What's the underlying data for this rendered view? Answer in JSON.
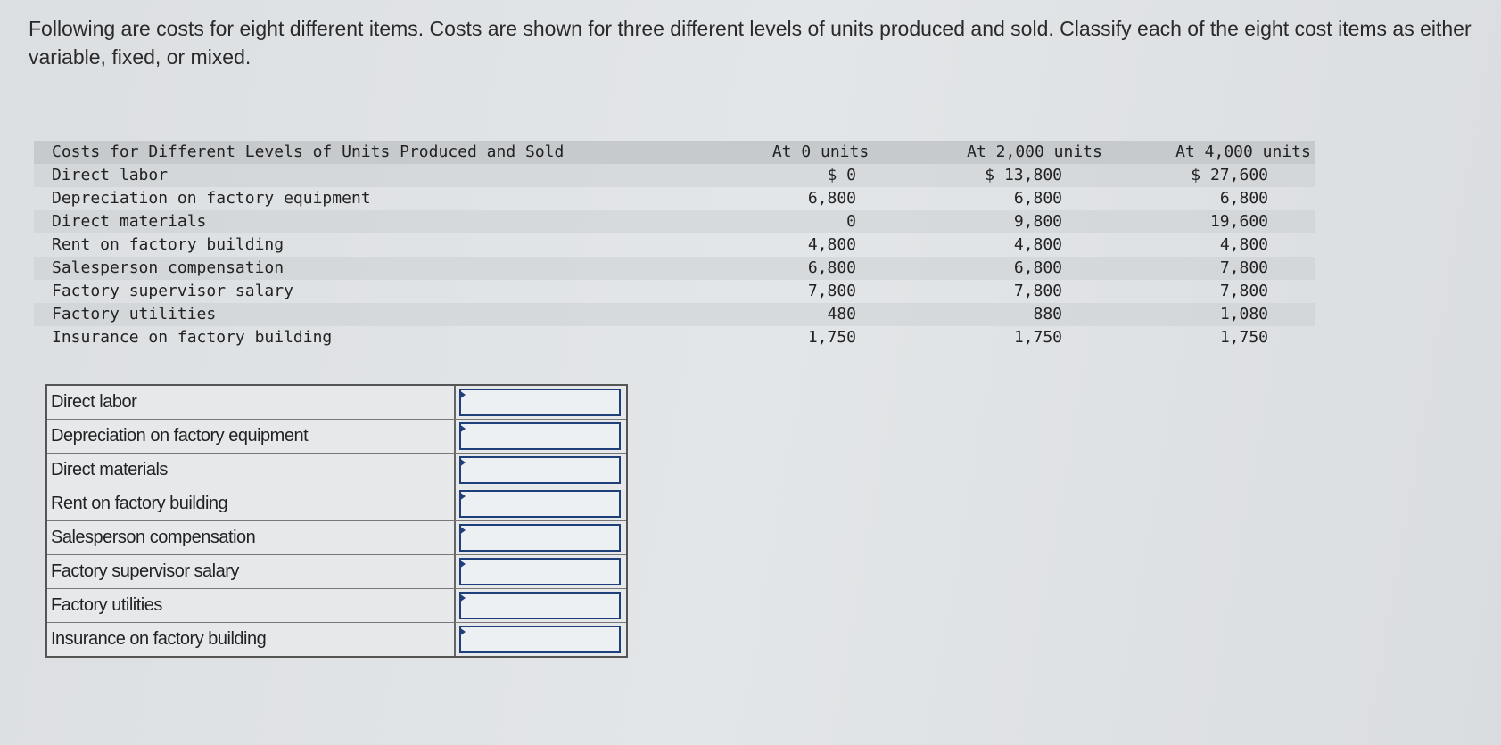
{
  "prompt": "Following are costs for eight different items. Costs are shown for three different levels of units produced and sold. Classify each of the eight cost items as either variable, fixed, or mixed.",
  "cost_table": {
    "header": [
      "Costs for Different Levels of Units Produced and Sold",
      "At 0 units",
      "At 2,000 units",
      "At 4,000 units"
    ],
    "rows": [
      [
        "Direct labor",
        "$ 0",
        "$ 13,800",
        "$ 27,600"
      ],
      [
        "Depreciation on factory equipment",
        "6,800",
        "6,800",
        "6,800"
      ],
      [
        "Direct materials",
        "0",
        "9,800",
        "19,600"
      ],
      [
        "Rent on factory building",
        "4,800",
        "4,800",
        "4,800"
      ],
      [
        "Salesperson compensation",
        "6,800",
        "6,800",
        "7,800"
      ],
      [
        "Factory supervisor salary",
        "7,800",
        "7,800",
        "7,800"
      ],
      [
        "Factory utilities",
        "480",
        "880",
        "1,080"
      ],
      [
        "Insurance on factory building",
        "1,750",
        "1,750",
        "1,750"
      ]
    ]
  },
  "answer_table": {
    "rows": [
      {
        "label": "Direct labor"
      },
      {
        "label": "Depreciation on factory equipment"
      },
      {
        "label": "Direct materials"
      },
      {
        "label": "Rent on factory building"
      },
      {
        "label": "Salesperson compensation"
      },
      {
        "label": "Factory supervisor salary"
      },
      {
        "label": "Factory utilities"
      },
      {
        "label": "Insurance on factory building"
      }
    ]
  }
}
